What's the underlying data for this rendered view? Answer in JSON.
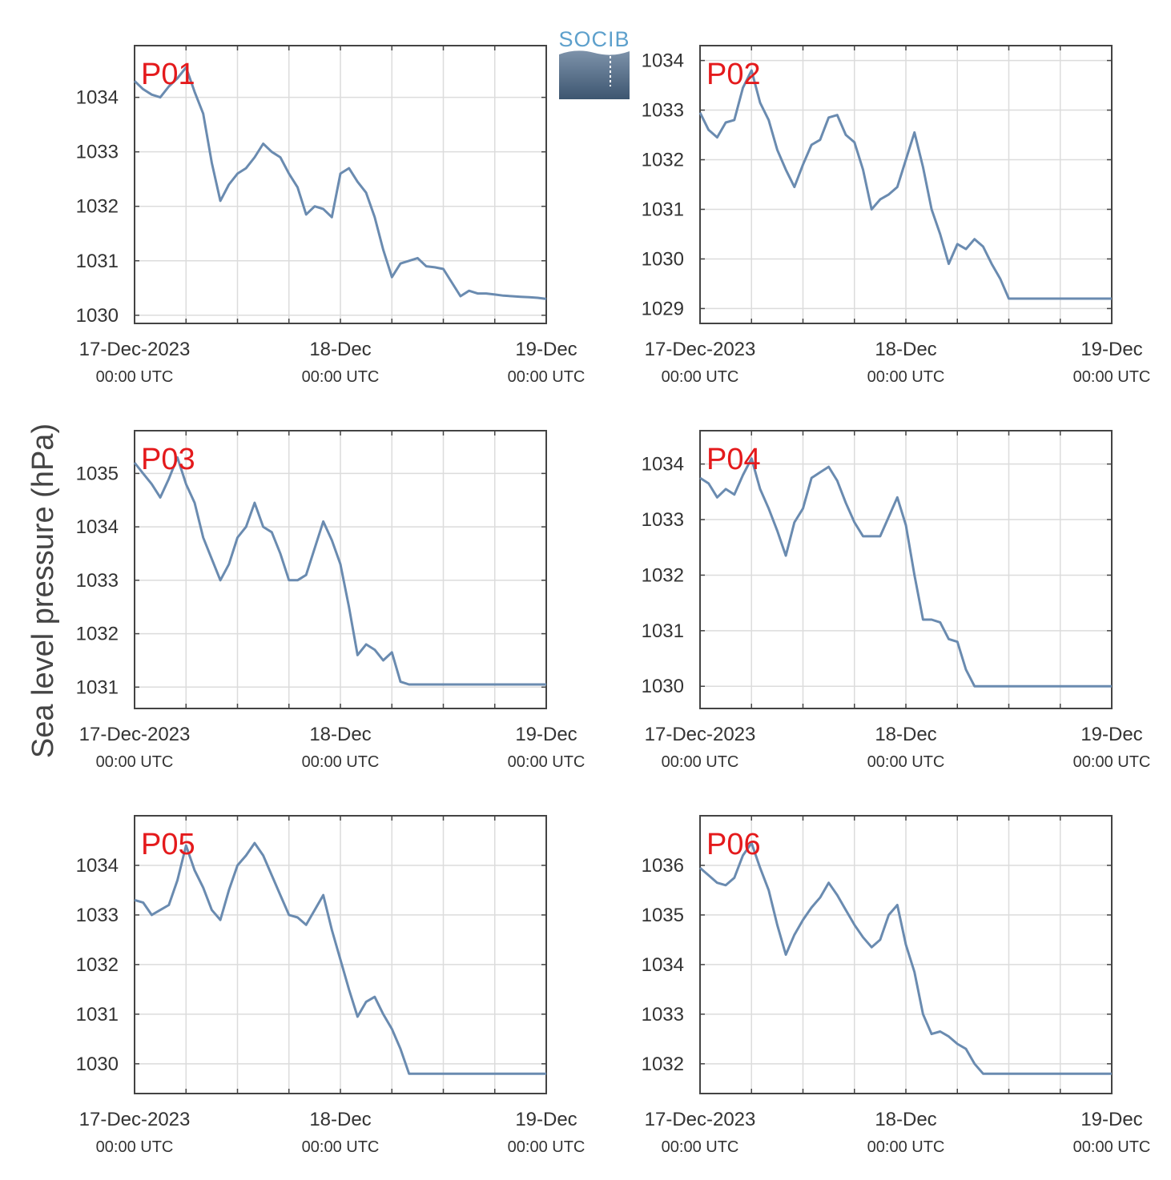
{
  "figure": {
    "ylabel": "Sea level pressure (hPa)",
    "logo_text": "SOCIB",
    "colors": {
      "line": "#6a8bb0",
      "panel_label": "#e41a1c",
      "grid": "#dcdcdc",
      "axis": "#444444"
    }
  },
  "chart_data": [
    {
      "type": "line",
      "title": "P01",
      "xlabel": "",
      "ylabel": "Sea level pressure (hPa)",
      "xticklabels": [
        [
          "17-Dec-2023",
          "00:00 UTC"
        ],
        [
          "18-Dec",
          "00:00 UTC"
        ],
        [
          "19-Dec",
          "00:00 UTC"
        ]
      ],
      "xlim": [
        0,
        48
      ],
      "ylim": [
        1029.85,
        1034.95
      ],
      "yticks": [
        1030,
        1031,
        1032,
        1033,
        1034
      ],
      "grid": true,
      "x": [
        0,
        1,
        2,
        3,
        4,
        5,
        6,
        7,
        8,
        9,
        10,
        11,
        12,
        13,
        14,
        15,
        16,
        17,
        18,
        19,
        20,
        21,
        22,
        23,
        24,
        25,
        26,
        27,
        28,
        29,
        30,
        31,
        32,
        33,
        34,
        35,
        36,
        37,
        38,
        39,
        40,
        41,
        42,
        43,
        44,
        45,
        46,
        47,
        48
      ],
      "values": [
        1034.3,
        1034.15,
        1034.05,
        1034.0,
        1034.2,
        1034.35,
        1034.55,
        1034.1,
        1033.7,
        1032.8,
        1032.1,
        1032.4,
        1032.6,
        1032.7,
        1032.9,
        1033.15,
        1033.0,
        1032.9,
        1032.6,
        1032.35,
        1031.85,
        1032.0,
        1031.95,
        1031.8,
        1032.6,
        1032.7,
        1032.45,
        1032.25,
        1031.8,
        1031.2,
        1030.7,
        1030.95,
        1031.0,
        1031.05,
        1030.9,
        1030.88,
        1030.85,
        1030.6,
        1030.35,
        1030.45,
        1030.4,
        1030.4,
        1030.38,
        1030.36,
        1030.35,
        1030.34,
        1030.33,
        1030.32,
        1030.3
      ]
    },
    {
      "type": "line",
      "title": "P02",
      "xlabel": "",
      "ylabel": "Sea level pressure (hPa)",
      "xticklabels": [
        [
          "17-Dec-2023",
          "00:00 UTC"
        ],
        [
          "18-Dec",
          "00:00 UTC"
        ],
        [
          "19-Dec",
          "00:00 UTC"
        ]
      ],
      "xlim": [
        0,
        48
      ],
      "ylim": [
        1028.7,
        1034.3
      ],
      "yticks": [
        1029,
        1030,
        1031,
        1032,
        1033,
        1034
      ],
      "grid": true,
      "x": [
        0,
        1,
        2,
        3,
        4,
        5,
        6,
        7,
        8,
        9,
        10,
        11,
        12,
        13,
        14,
        15,
        16,
        17,
        18,
        19,
        20,
        21,
        22,
        23,
        24,
        25,
        26,
        27,
        28,
        29,
        30,
        31,
        32,
        33,
        34,
        35,
        36,
        37,
        38,
        39,
        40,
        41,
        42,
        43,
        44,
        45,
        46,
        47,
        48
      ],
      "values": [
        1032.95,
        1032.6,
        1032.45,
        1032.75,
        1032.8,
        1033.45,
        1033.8,
        1033.15,
        1032.8,
        1032.2,
        1031.8,
        1031.45,
        1031.9,
        1032.3,
        1032.4,
        1032.85,
        1032.9,
        1032.5,
        1032.35,
        1031.8,
        1031.0,
        1031.2,
        1031.3,
        1031.45,
        1032.0,
        1032.55,
        1031.85,
        1031.0,
        1030.5,
        1029.9,
        1030.3,
        1030.2,
        1030.4,
        1030.25,
        1029.9,
        1029.6,
        1029.2,
        1029.2,
        1029.2,
        1029.2,
        1029.2,
        1029.2,
        1029.2,
        1029.2,
        1029.2,
        1029.2,
        1029.2,
        1029.2,
        1029.2
      ]
    },
    {
      "type": "line",
      "title": "P03",
      "xlabel": "",
      "ylabel": "Sea level pressure (hPa)",
      "xticklabels": [
        [
          "17-Dec-2023",
          "00:00 UTC"
        ],
        [
          "18-Dec",
          "00:00 UTC"
        ],
        [
          "19-Dec",
          "00:00 UTC"
        ]
      ],
      "xlim": [
        0,
        48
      ],
      "ylim": [
        1030.6,
        1035.8
      ],
      "yticks": [
        1031,
        1032,
        1033,
        1034,
        1035
      ],
      "grid": true,
      "x": [
        0,
        1,
        2,
        3,
        4,
        5,
        6,
        7,
        8,
        9,
        10,
        11,
        12,
        13,
        14,
        15,
        16,
        17,
        18,
        19,
        20,
        21,
        22,
        23,
        24,
        25,
        26,
        27,
        28,
        29,
        30,
        31,
        32,
        33,
        34,
        35,
        36,
        37,
        38,
        39,
        40,
        41,
        42,
        43,
        44,
        45,
        46,
        47,
        48
      ],
      "values": [
        1035.2,
        1035.0,
        1034.8,
        1034.55,
        1034.9,
        1035.3,
        1034.8,
        1034.45,
        1033.8,
        1033.4,
        1033.0,
        1033.3,
        1033.8,
        1034.0,
        1034.45,
        1034.0,
        1033.9,
        1033.5,
        1033.0,
        1033.0,
        1033.1,
        1033.6,
        1034.1,
        1033.75,
        1033.3,
        1032.5,
        1031.6,
        1031.8,
        1031.7,
        1031.5,
        1031.65,
        1031.1,
        1031.05,
        1031.05,
        1031.05,
        1031.05,
        1031.05,
        1031.05,
        1031.05,
        1031.05,
        1031.05,
        1031.05,
        1031.05,
        1031.05,
        1031.05,
        1031.05,
        1031.05,
        1031.05,
        1031.05
      ]
    },
    {
      "type": "line",
      "title": "P04",
      "xlabel": "",
      "ylabel": "Sea level pressure (hPa)",
      "xticklabels": [
        [
          "17-Dec-2023",
          "00:00 UTC"
        ],
        [
          "18-Dec",
          "00:00 UTC"
        ],
        [
          "19-Dec",
          "00:00 UTC"
        ]
      ],
      "xlim": [
        0,
        48
      ],
      "ylim": [
        1029.6,
        1034.6
      ],
      "yticks": [
        1030,
        1031,
        1032,
        1033,
        1034
      ],
      "grid": true,
      "x": [
        0,
        1,
        2,
        3,
        4,
        5,
        6,
        7,
        8,
        9,
        10,
        11,
        12,
        13,
        14,
        15,
        16,
        17,
        18,
        19,
        20,
        21,
        22,
        23,
        24,
        25,
        26,
        27,
        28,
        29,
        30,
        31,
        32,
        33,
        34,
        35,
        36,
        37,
        38,
        39,
        40,
        41,
        42,
        43,
        44,
        45,
        46,
        47,
        48
      ],
      "values": [
        1033.75,
        1033.65,
        1033.4,
        1033.55,
        1033.45,
        1033.8,
        1034.1,
        1033.55,
        1033.2,
        1032.8,
        1032.35,
        1032.95,
        1033.2,
        1033.75,
        1033.85,
        1033.95,
        1033.7,
        1033.3,
        1032.95,
        1032.7,
        1032.7,
        1032.7,
        1033.05,
        1033.4,
        1032.9,
        1032.0,
        1031.2,
        1031.2,
        1031.15,
        1030.85,
        1030.8,
        1030.3,
        1030.0,
        1030.0,
        1030.0,
        1030.0,
        1030.0,
        1030.0,
        1030.0,
        1030.0,
        1030.0,
        1030.0,
        1030.0,
        1030.0,
        1030.0,
        1030.0,
        1030.0,
        1030.0,
        1030.0
      ]
    },
    {
      "type": "line",
      "title": "P05",
      "xlabel": "",
      "ylabel": "Sea level pressure (hPa)",
      "xticklabels": [
        [
          "17-Dec-2023",
          "00:00 UTC"
        ],
        [
          "18-Dec",
          "00:00 UTC"
        ],
        [
          "19-Dec",
          "00:00 UTC"
        ]
      ],
      "xlim": [
        0,
        48
      ],
      "ylim": [
        1029.4,
        1035.0
      ],
      "yticks": [
        1030,
        1031,
        1032,
        1033,
        1034
      ],
      "grid": true,
      "x": [
        0,
        1,
        2,
        3,
        4,
        5,
        6,
        7,
        8,
        9,
        10,
        11,
        12,
        13,
        14,
        15,
        16,
        17,
        18,
        19,
        20,
        21,
        22,
        23,
        24,
        25,
        26,
        27,
        28,
        29,
        30,
        31,
        32,
        33,
        34,
        35,
        36,
        37,
        38,
        39,
        40,
        41,
        42,
        43,
        44,
        45,
        46,
        47,
        48
      ],
      "values": [
        1033.3,
        1033.25,
        1033.0,
        1033.1,
        1033.2,
        1033.7,
        1034.4,
        1033.9,
        1033.55,
        1033.1,
        1032.9,
        1033.5,
        1034.0,
        1034.2,
        1034.45,
        1034.2,
        1033.8,
        1033.4,
        1033.0,
        1032.95,
        1032.8,
        1033.1,
        1033.4,
        1032.7,
        1032.1,
        1031.5,
        1030.95,
        1031.25,
        1031.35,
        1031.0,
        1030.7,
        1030.3,
        1029.8,
        1029.8,
        1029.8,
        1029.8,
        1029.8,
        1029.8,
        1029.8,
        1029.8,
        1029.8,
        1029.8,
        1029.8,
        1029.8,
        1029.8,
        1029.8,
        1029.8,
        1029.8,
        1029.8
      ]
    },
    {
      "type": "line",
      "title": "P06",
      "xlabel": "",
      "ylabel": "Sea level pressure (hPa)",
      "xticklabels": [
        [
          "17-Dec-2023",
          "00:00 UTC"
        ],
        [
          "18-Dec",
          "00:00 UTC"
        ],
        [
          "19-Dec",
          "00:00 UTC"
        ]
      ],
      "xlim": [
        0,
        48
      ],
      "ylim": [
        1031.4,
        1037.0
      ],
      "yticks": [
        1032,
        1033,
        1034,
        1035,
        1036
      ],
      "grid": true,
      "x": [
        0,
        1,
        2,
        3,
        4,
        5,
        6,
        7,
        8,
        9,
        10,
        11,
        12,
        13,
        14,
        15,
        16,
        17,
        18,
        19,
        20,
        21,
        22,
        23,
        24,
        25,
        26,
        27,
        28,
        29,
        30,
        31,
        32,
        33,
        34,
        35,
        36,
        37,
        38,
        39,
        40,
        41,
        42,
        43,
        44,
        45,
        46,
        47,
        48
      ],
      "values": [
        1035.95,
        1035.8,
        1035.65,
        1035.6,
        1035.75,
        1036.2,
        1036.45,
        1035.95,
        1035.5,
        1034.8,
        1034.2,
        1034.6,
        1034.9,
        1035.15,
        1035.35,
        1035.65,
        1035.4,
        1035.1,
        1034.8,
        1034.55,
        1034.35,
        1034.5,
        1035.0,
        1035.2,
        1034.4,
        1033.85,
        1033.0,
        1032.6,
        1032.65,
        1032.55,
        1032.4,
        1032.3,
        1032.0,
        1031.8,
        1031.8,
        1031.8,
        1031.8,
        1031.8,
        1031.8,
        1031.8,
        1031.8,
        1031.8,
        1031.8,
        1031.8,
        1031.8,
        1031.8,
        1031.8,
        1031.8,
        1031.8
      ]
    }
  ]
}
